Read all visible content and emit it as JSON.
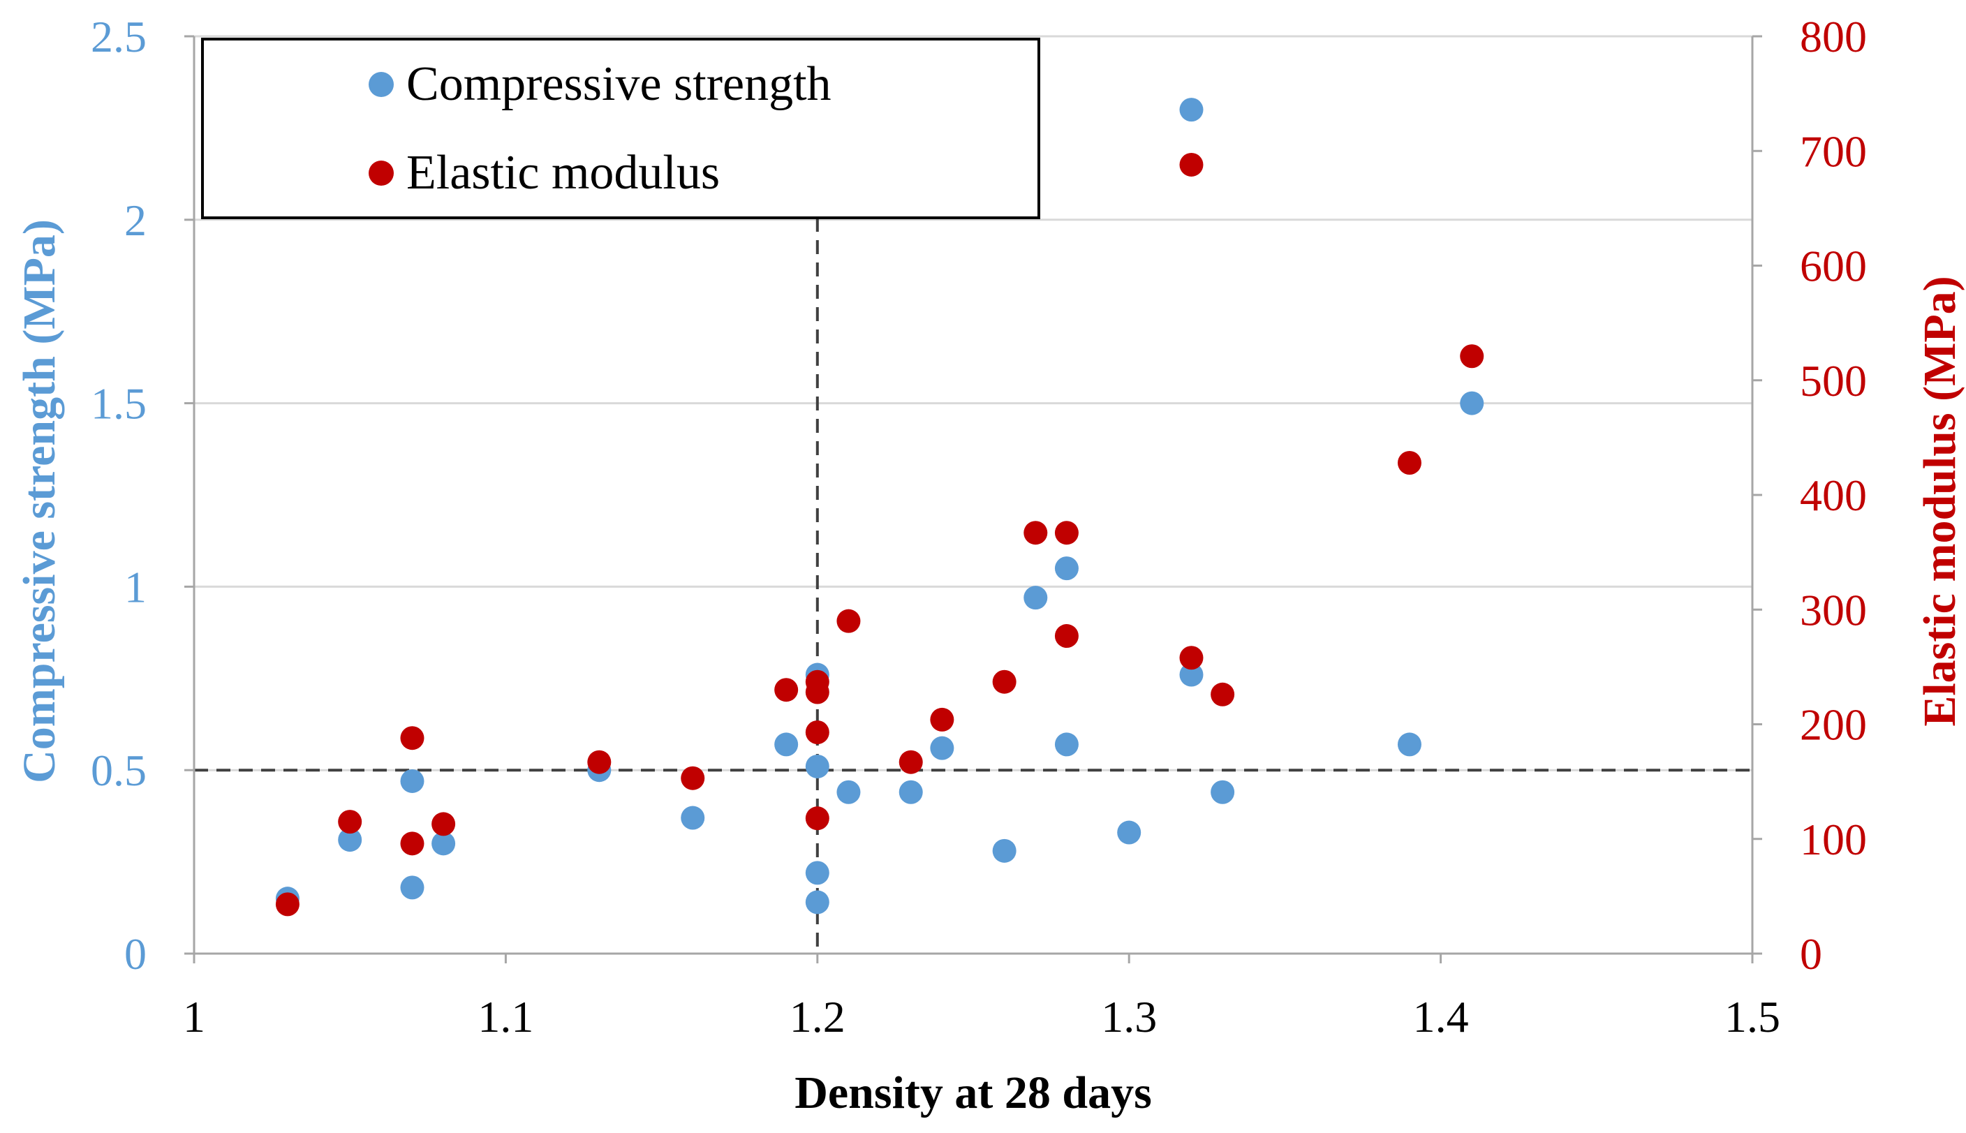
{
  "chart_data": {
    "type": "scatter",
    "xlabel": "Density at 28 days",
    "ylabel_left": "Compressive strength (MPa)",
    "ylabel_right": "Elastic modulus (MPa)",
    "xlim": [
      1,
      1.5
    ],
    "ylim_left": [
      0,
      2.5
    ],
    "ylim_right": [
      0,
      800
    ],
    "x_ticks": [
      "1",
      "1.1",
      "1.2",
      "1.3",
      "1.4",
      "1.5"
    ],
    "y_left_ticks": [
      "0",
      "0.5",
      "1",
      "1.5",
      "2",
      "2.5"
    ],
    "y_right_ticks": [
      "0",
      "100",
      "200",
      "300",
      "400",
      "500",
      "600",
      "700",
      "800"
    ],
    "grid": "horizontal",
    "legend": "top-left",
    "reference_lines": {
      "vertical_x": 1.2,
      "horizontal_y_left": 0.5
    },
    "series": [
      {
        "name": "Compressive strength",
        "axis": "left",
        "color": "#5b9bd5",
        "points": [
          [
            1.03,
            0.15
          ],
          [
            1.05,
            0.31
          ],
          [
            1.07,
            0.47
          ],
          [
            1.07,
            0.18
          ],
          [
            1.08,
            0.3
          ],
          [
            1.13,
            0.5
          ],
          [
            1.16,
            0.37
          ],
          [
            1.19,
            0.57
          ],
          [
            1.2,
            0.76
          ],
          [
            1.2,
            0.51
          ],
          [
            1.2,
            0.22
          ],
          [
            1.2,
            0.14
          ],
          [
            1.21,
            0.44
          ],
          [
            1.23,
            0.44
          ],
          [
            1.24,
            0.56
          ],
          [
            1.26,
            0.28
          ],
          [
            1.27,
            0.97
          ],
          [
            1.28,
            1.05
          ],
          [
            1.28,
            0.57
          ],
          [
            1.3,
            0.33
          ],
          [
            1.32,
            2.3
          ],
          [
            1.32,
            0.76
          ],
          [
            1.33,
            0.44
          ],
          [
            1.39,
            0.57
          ],
          [
            1.41,
            1.5
          ]
        ]
      },
      {
        "name": "Elastic modulus",
        "axis": "right",
        "color": "#c00000",
        "points": [
          [
            1.03,
            43
          ],
          [
            1.05,
            115
          ],
          [
            1.07,
            188
          ],
          [
            1.07,
            96
          ],
          [
            1.08,
            113
          ],
          [
            1.13,
            167
          ],
          [
            1.16,
            153
          ],
          [
            1.19,
            230
          ],
          [
            1.2,
            237
          ],
          [
            1.2,
            228
          ],
          [
            1.2,
            193
          ],
          [
            1.2,
            118
          ],
          [
            1.21,
            290
          ],
          [
            1.23,
            167
          ],
          [
            1.24,
            204
          ],
          [
            1.26,
            237
          ],
          [
            1.27,
            367
          ],
          [
            1.28,
            367
          ],
          [
            1.28,
            277
          ],
          [
            1.32,
            688
          ],
          [
            1.32,
            258
          ],
          [
            1.33,
            226
          ],
          [
            1.39,
            428
          ],
          [
            1.41,
            521
          ]
        ]
      }
    ]
  }
}
